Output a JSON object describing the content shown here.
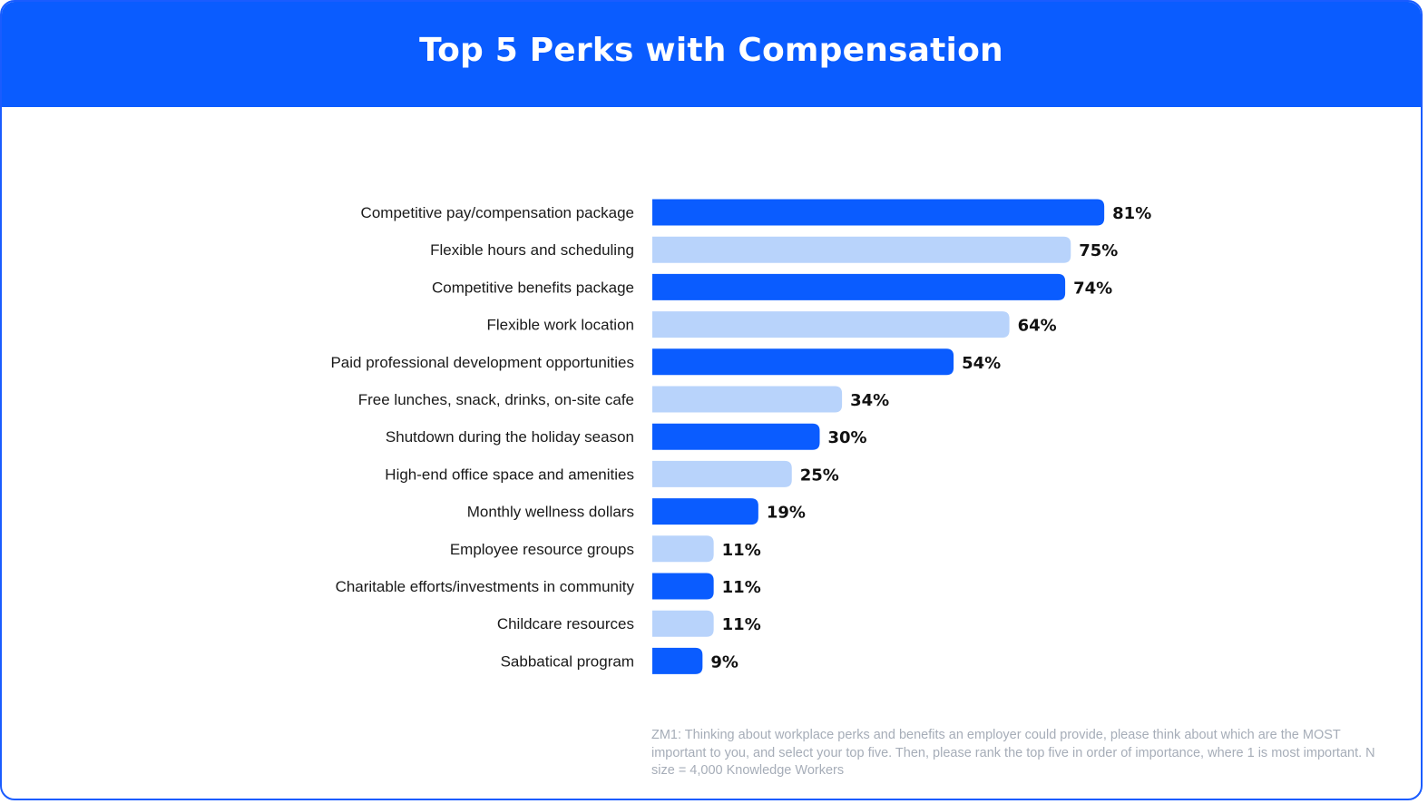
{
  "chart_data": {
    "type": "bar",
    "orientation": "horizontal",
    "title": "Top 5 Perks with Compensation",
    "categories": [
      "Competitive pay/compensation package",
      "Flexible hours and scheduling",
      "Competitive benefits package",
      "Flexible work location",
      "Paid professional development opportunities",
      "Free lunches, snack, drinks, on-site cafe",
      "Shutdown during the holiday season",
      "High-end office space and amenities",
      "Monthly wellness dollars",
      "Employee resource groups",
      "Charitable efforts/investments in community",
      "Childcare resources",
      "Sabbatical program"
    ],
    "values": [
      81,
      75,
      74,
      64,
      54,
      34,
      30,
      25,
      19,
      11,
      11,
      11,
      9
    ],
    "value_labels": [
      "81%",
      "75%",
      "74%",
      "64%",
      "54%",
      "34%",
      "30%",
      "25%",
      "19%",
      "11%",
      "11%",
      "11%",
      "9%"
    ],
    "xlim": [
      0,
      100
    ],
    "grid": false,
    "legend": "none",
    "colors": {
      "primary": "#0a5cff",
      "secondary": "#b8d3fb"
    },
    "footnote": "ZM1: Thinking about workplace perks and benefits an employer could provide, please think about which are the MOST important to you, and select your top five. Then, please rank the top five in order of importance, where 1 is most important. N size = 4,000 Knowledge Workers"
  }
}
